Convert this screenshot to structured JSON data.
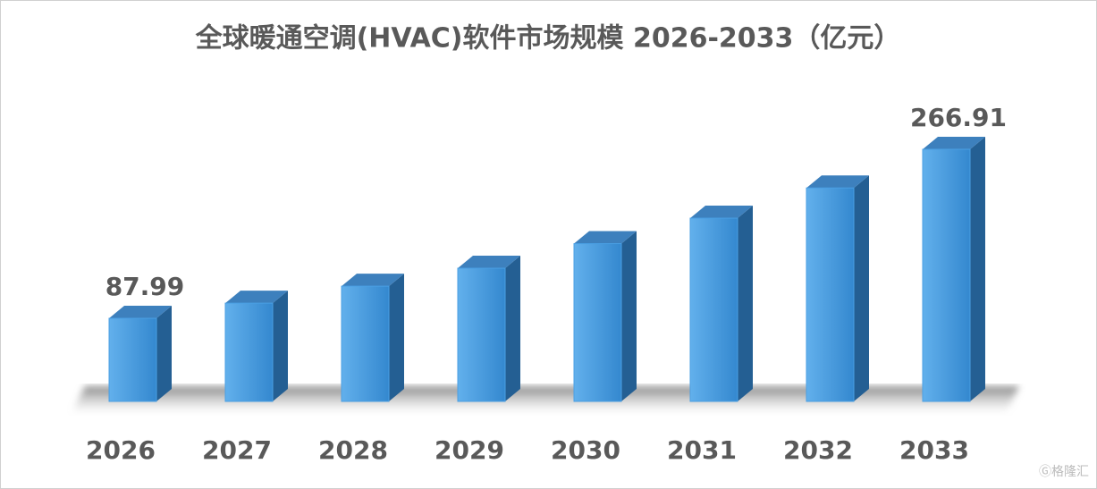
{
  "chart_data": {
    "type": "bar3d",
    "title": "全球暖通空调(HVAC)软件市场规模 2026-2033（亿元）",
    "categories": [
      "2026",
      "2027",
      "2028",
      "2029",
      "2030",
      "2031",
      "2032",
      "2033"
    ],
    "values": [
      87.99,
      104,
      122,
      141,
      167,
      194,
      226,
      266.91
    ],
    "color": "#4a9fe3",
    "label_points": "ends"
  }
}
